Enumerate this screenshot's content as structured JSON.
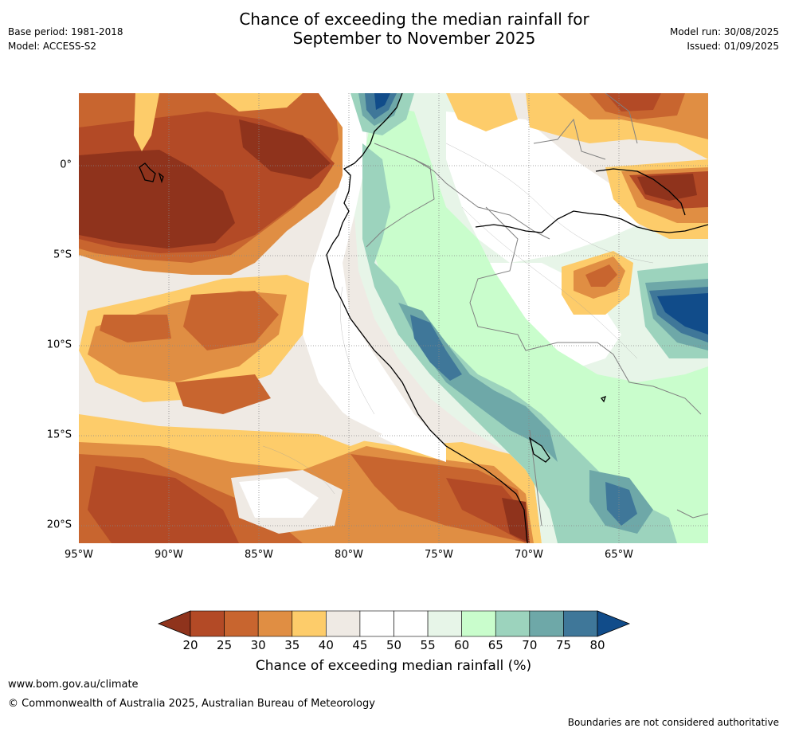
{
  "header": {
    "title_line1": "Chance of exceeding the median rainfall for",
    "title_line2": "September to November 2025",
    "base_period": "Base period: 1981-2018",
    "model": "Model: ACCESS-S2",
    "model_run": "Model run: 30/08/2025",
    "issued": "Issued: 01/09/2025"
  },
  "map": {
    "lon_labels": [
      "95°W",
      "90°W",
      "85°W",
      "80°W",
      "75°W",
      "70°W",
      "65°W"
    ],
    "lat_labels": [
      "0°",
      "5°S",
      "10°S",
      "15°S",
      "20°S"
    ],
    "colors": {
      "c20": "#8f331c",
      "c25": "#b34a26",
      "c30": "#c8652f",
      "c35": "#e08e43",
      "c40": "#fdcc6a",
      "c45": "#efeae4",
      "c50": "#ffffff",
      "c55": "#ffffff",
      "c60": "#e7f5e8",
      "c65": "#c9fdcc",
      "c70": "#9cd3bd",
      "c75": "#6ea8a8",
      "c80": "#3f7799",
      "c80plus": "#114c8a"
    }
  },
  "colorbar": {
    "tick_labels": [
      "20",
      "25",
      "30",
      "35",
      "40",
      "45",
      "50",
      "55",
      "60",
      "65",
      "70",
      "75",
      "80"
    ],
    "colors": [
      "#8f331c",
      "#b34a26",
      "#c8652f",
      "#e08e43",
      "#fdcc6a",
      "#efeae4",
      "#ffffff",
      "#ffffff",
      "#e7f5e8",
      "#c9fdcc",
      "#9cd3bd",
      "#6ea8a8",
      "#3f7799",
      "#114c8a"
    ],
    "title": "Chance of exceeding median rainfall (%)"
  },
  "footer": {
    "website": "www.bom.gov.au/climate",
    "copyright": "© Commonwealth of Australia 2025, Australian Bureau of Meteorology",
    "disclaimer": "Boundaries are not considered authoritative"
  }
}
